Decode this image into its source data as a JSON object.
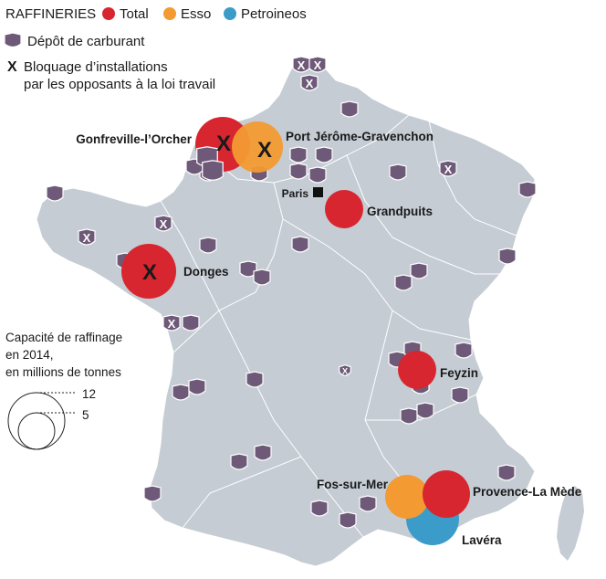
{
  "legend": {
    "heading": "RAFFINERIES",
    "operators": [
      {
        "label": "Total",
        "color": "#d7262f"
      },
      {
        "label": "Esso",
        "color": "#f39a32"
      },
      {
        "label": "Petroineos",
        "color": "#3b9cc9"
      }
    ],
    "depot_label": "Dépôt de carburant",
    "blockade_symbol": "X",
    "blockade_label_1": "Bloquage d’installations",
    "blockade_label_2": "par les opposants à la loi travail"
  },
  "scale": {
    "title_1": "Capacité de raffinage",
    "title_2": "en 2014,",
    "title_3": "en millions de tonnes",
    "values": [
      12,
      5
    ]
  },
  "cities": {
    "gonfreville": "Gonfreville-l’Orcher",
    "port_jerome": "Port Jérôme-Gravenchon",
    "paris": "Paris",
    "grandpuits": "Grandpuits",
    "donges": "Donges",
    "feyzin": "Feyzin",
    "fos": "Fos-sur-Mer",
    "provence": "Provence-La Mède",
    "lavera": "Lavéra"
  },
  "refineries": [
    {
      "name": "Gonfreville-l’Orcher",
      "operator": "Total",
      "blocked": true
    },
    {
      "name": "Port Jérôme-Gravenchon",
      "operator": "Esso",
      "blocked": true
    },
    {
      "name": "Grandpuits",
      "operator": "Total",
      "blocked": false
    },
    {
      "name": "Donges",
      "operator": "Total",
      "blocked": true
    },
    {
      "name": "Feyzin",
      "operator": "Total",
      "blocked": false
    },
    {
      "name": "Fos-sur-Mer",
      "operator": "Esso",
      "blocked": false
    },
    {
      "name": "Provence-La Mède",
      "operator": "Total",
      "blocked": false
    },
    {
      "name": "Lavéra",
      "operator": "Petroineos",
      "blocked": false
    }
  ],
  "colors": {
    "land": "#c5ccd4",
    "depot": "#6e5a78"
  }
}
